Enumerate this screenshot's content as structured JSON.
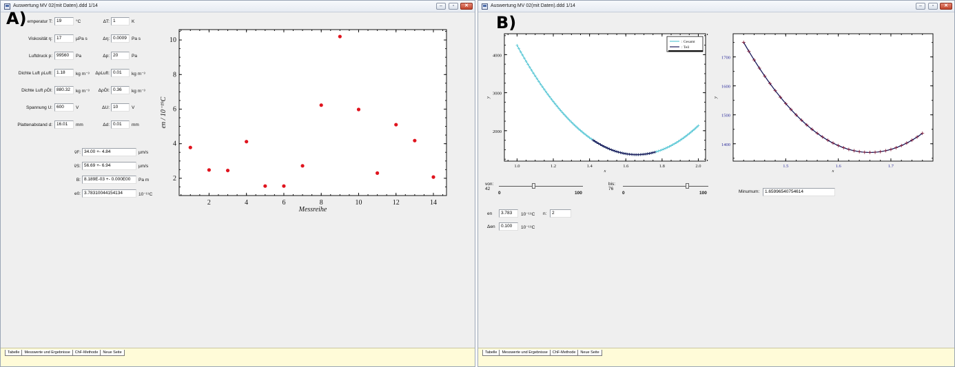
{
  "window_a": {
    "panel_letter": "A)",
    "title": "Auswertung MV 02(mit Daten).ddd   1/14",
    "inputs": [
      {
        "label": "emperatur T:",
        "value": "19",
        "unit": "°C",
        "delta_label": "ΔT:",
        "delta_value": "1",
        "delta_unit": "K"
      },
      {
        "label": "Viskosität η:",
        "value": "17",
        "unit": "µPa s",
        "delta_label": "Δη:",
        "delta_value": "0.0009",
        "delta_unit": "Pa s"
      },
      {
        "label": "Luftdruck p:",
        "value": "99560",
        "unit": "Pa",
        "delta_label": "Δp:",
        "delta_value": "20",
        "delta_unit": "Pa"
      },
      {
        "label": "Dichte Luft ρLuft:",
        "value": "1.18",
        "unit": "kg m⁻³",
        "delta_label": "ΔρLuft:",
        "delta_value": "0.01",
        "delta_unit": "kg m⁻³"
      },
      {
        "label": "Dichte Luft ρÖl:",
        "value": "880.32",
        "unit": "kg m⁻³",
        "delta_label": "ΔρÖl:",
        "delta_value": "0.36",
        "delta_unit": "kg m⁻³"
      },
      {
        "label": "Spannung U:",
        "value": "600",
        "unit": "V",
        "delta_label": "ΔU:",
        "delta_value": "10",
        "delta_unit": "V"
      },
      {
        "label": "Plattenabstand d:",
        "value": "16.01",
        "unit": "mm",
        "delta_label": "Δd:",
        "delta_value": "0.01",
        "delta_unit": "mm"
      }
    ],
    "results": [
      {
        "label": "v̄F:",
        "value": "34.00 +- 4.84",
        "unit": "µm/s"
      },
      {
        "label": "v̄S:",
        "value": "56.69 +- 6.94",
        "unit": "µm/s"
      },
      {
        "label": "B:",
        "value": "8.189E-03 +- 0.000E00",
        "unit": "Pa m"
      },
      {
        "label": "e0:",
        "value": "3.78310044154134",
        "unit": "10⁻¹⁹C"
      }
    ],
    "tabs": [
      "Tabelle",
      "Messwerte und Ergebnisse",
      "ChF-Methode",
      "Neue Seite"
    ]
  },
  "window_b": {
    "panel_letter": "B)",
    "title": "Auswertung MV 02(mit Daten).ddd   1/14",
    "slider_von": {
      "label": "von:",
      "value": "42",
      "min_label": "0",
      "max_label": "100",
      "position": 0.42
    },
    "slider_bis": {
      "label": "bis:",
      "value": "76",
      "min_label": "0",
      "max_label": "100",
      "position": 0.76
    },
    "minimum": {
      "label": "Minumum:",
      "value": "1.65996540754614"
    },
    "e_n": {
      "label": "en",
      "value": "3.783",
      "unit": "10⁻¹⁹C",
      "n_label": "n:",
      "n_value": "2"
    },
    "delta_e_n": {
      "label": "Δen",
      "value": "0.100",
      "unit": "10⁻¹⁹C"
    },
    "tabs": [
      "Tabelle",
      "Messwerte und Ergebnisse",
      "ChF-Methode",
      "Neue Seite"
    ]
  },
  "colors": {
    "scatter": "#e0141e",
    "gesamt": "#5cc8d6",
    "teil": "#1a1a5a",
    "right_axis": "#2a2a9a"
  },
  "chart_data": [
    {
      "type": "scatter",
      "xlabel": "Messreihe",
      "ylabel": "en / 10⁻¹⁹C",
      "xlim": [
        0.4,
        14.7
      ],
      "ylim": [
        1.0,
        10.6
      ],
      "x_ticks": [
        2,
        4,
        6,
        8,
        10,
        12,
        14
      ],
      "y_ticks": [
        2,
        4,
        6,
        8,
        10
      ],
      "x": [
        1,
        2,
        3,
        4,
        5,
        6,
        7,
        8,
        9,
        10,
        11,
        12,
        13,
        14
      ],
      "y": [
        3.78,
        2.48,
        2.45,
        4.12,
        1.55,
        1.55,
        2.72,
        6.23,
        10.2,
        5.98,
        2.3,
        5.1,
        4.18,
        2.07
      ]
    },
    {
      "type": "line",
      "xlabel": "x",
      "ylabel": "y",
      "xlim": [
        0.93,
        2.04
      ],
      "ylim": [
        1200,
        4550
      ],
      "x_ticks": [
        1.0,
        1.2,
        1.4,
        1.6,
        1.8,
        2.0
      ],
      "y_ticks": [
        2000,
        3000,
        4000
      ],
      "legend": {
        "position": "top-right",
        "entries": [
          "Gesamt",
          "Teil"
        ]
      },
      "series": [
        {
          "name": "Gesamt",
          "x_range": [
            1.0,
            2.0
          ],
          "x_min": 1.66,
          "y_min": 1370,
          "a": 6600
        },
        {
          "name": "Teil",
          "x_range": [
            1.42,
            1.76
          ],
          "x_min": 1.66,
          "y_min": 1370,
          "a": 6600
        }
      ]
    },
    {
      "type": "line",
      "xlabel": "x",
      "ylabel": "y",
      "xlim": [
        1.4,
        1.78
      ],
      "ylim": [
        1340,
        1780
      ],
      "x_ticks": [
        1.5,
        1.6,
        1.7
      ],
      "y_ticks": [
        1400,
        1500,
        1600,
        1700
      ],
      "series": [
        {
          "x_range": [
            1.42,
            1.76
          ],
          "x_min": 1.66,
          "y_min": 1370,
          "a": 6600
        }
      ]
    }
  ]
}
